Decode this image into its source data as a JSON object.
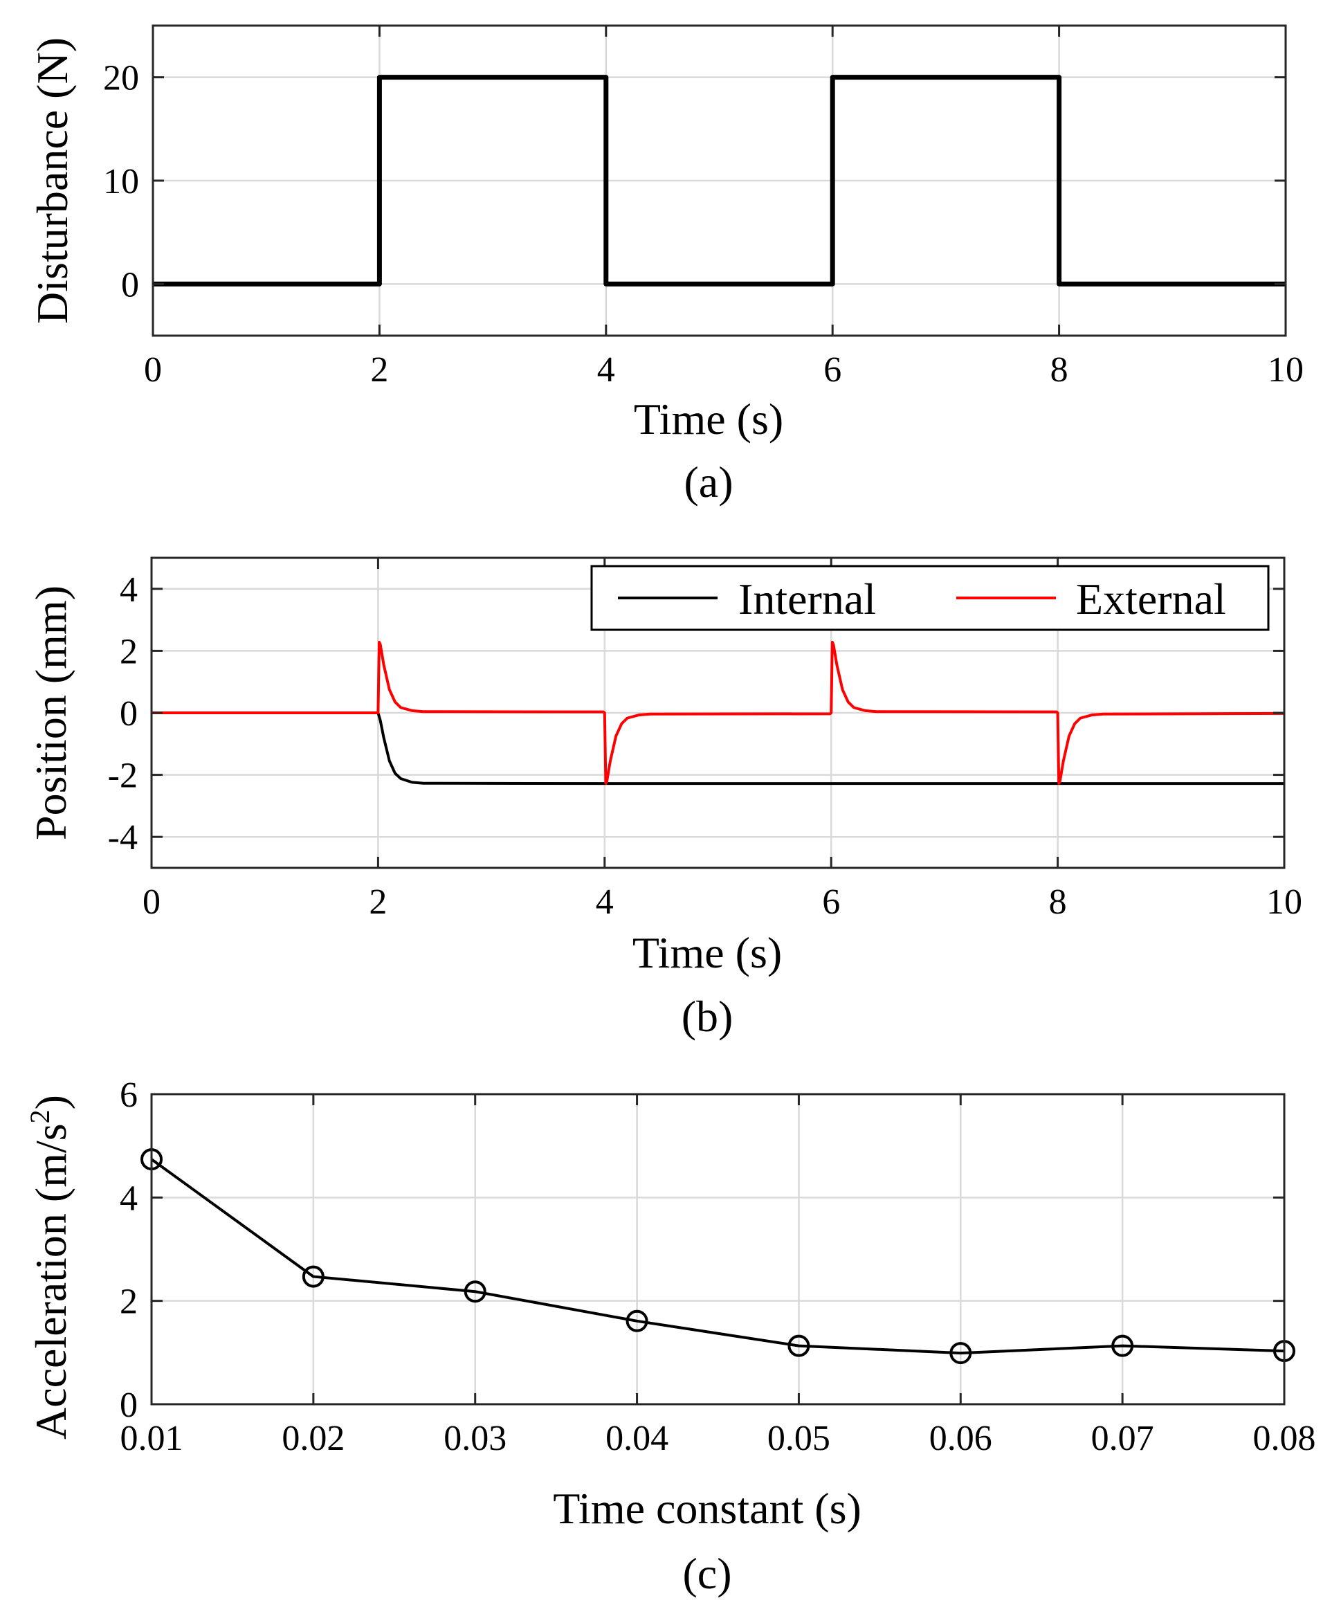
{
  "chart_data": [
    {
      "type": "line",
      "id": "a",
      "caption": "(a)",
      "xlabel": "Time (s)",
      "ylabel": "Disturbance (N)",
      "xlim": [
        0,
        10
      ],
      "ylim": [
        -5,
        25
      ],
      "xticks": [
        0,
        2,
        4,
        6,
        8,
        10
      ],
      "xtick_labels": [
        "0",
        "2",
        "4",
        "6",
        "8",
        "10"
      ],
      "yticks": [
        0,
        10,
        20
      ],
      "ytick_labels": [
        "0",
        "10",
        "20"
      ],
      "grid": true,
      "series": [
        {
          "name": "Disturbance",
          "color": "#000000",
          "x": [
            0,
            2,
            2,
            4,
            4,
            6,
            6,
            8,
            8,
            10
          ],
          "y": [
            0,
            0,
            20,
            20,
            0,
            0,
            20,
            20,
            0,
            0
          ]
        }
      ]
    },
    {
      "type": "line",
      "id": "b",
      "caption": "(b)",
      "xlabel": "Time (s)",
      "ylabel": "Position (mm)",
      "xlim": [
        0,
        10
      ],
      "ylim": [
        -5,
        5
      ],
      "xticks": [
        0,
        2,
        4,
        6,
        8,
        10
      ],
      "xtick_labels": [
        "0",
        "2",
        "4",
        "6",
        "8",
        "10"
      ],
      "yticks": [
        -4,
        -2,
        0,
        2,
        4
      ],
      "ytick_labels": [
        "-4",
        "-2",
        "0",
        "2",
        "4"
      ],
      "grid": true,
      "legend_position": "top-right",
      "series": [
        {
          "name": "Internal",
          "color": "#000000",
          "x": [
            0,
            2.0,
            2.02,
            2.05,
            2.1,
            2.15,
            2.2,
            2.3,
            2.4,
            3.99,
            4.0,
            6.0,
            6.02,
            6.05,
            6.1,
            6.15,
            6.2,
            6.3,
            6.4,
            7.99,
            8.0,
            10
          ],
          "y": [
            0,
            0,
            -0.25,
            -0.8,
            -1.55,
            -1.95,
            -2.12,
            -2.24,
            -2.27,
            -2.28,
            -2.28,
            -2.28,
            -2.28,
            -2.28,
            -2.28,
            -2.28,
            -2.28,
            -2.28,
            -2.28,
            -2.28,
            -2.28,
            -2.28
          ]
        },
        {
          "name": "External",
          "color": "#ff0000",
          "x": [
            0,
            2.0,
            2.01,
            2.02,
            2.05,
            2.1,
            2.15,
            2.2,
            2.3,
            2.4,
            3.99,
            4.0,
            4.01,
            4.02,
            4.05,
            4.1,
            4.15,
            4.2,
            4.3,
            4.4,
            5.99,
            6.0,
            6.01,
            6.02,
            6.05,
            6.1,
            6.15,
            6.2,
            6.3,
            6.4,
            7.99,
            8.0,
            8.01,
            8.02,
            8.05,
            8.1,
            8.15,
            8.2,
            8.3,
            8.4,
            10
          ],
          "y": [
            0,
            0,
            2.28,
            2.2,
            1.55,
            0.75,
            0.35,
            0.17,
            0.07,
            0.04,
            0.03,
            0,
            -2.28,
            -2.2,
            -1.55,
            -0.75,
            -0.35,
            -0.17,
            -0.07,
            -0.04,
            -0.03,
            0,
            2.28,
            2.2,
            1.55,
            0.75,
            0.35,
            0.17,
            0.07,
            0.04,
            0.03,
            0,
            -2.28,
            -2.2,
            -1.55,
            -0.75,
            -0.35,
            -0.17,
            -0.07,
            -0.04,
            -0.02
          ]
        }
      ]
    },
    {
      "type": "line",
      "id": "c",
      "caption": "(c)",
      "xlabel": "Time constant (s)",
      "ylabel_base": "Acceleration (m/s",
      "ylabel_sup": "2",
      "ylabel_close": ")",
      "xlim": [
        0.01,
        0.08
      ],
      "ylim": [
        0,
        6
      ],
      "xticks": [
        0.01,
        0.02,
        0.03,
        0.04,
        0.05,
        0.06,
        0.07,
        0.08
      ],
      "xtick_labels": [
        "0.01",
        "0.02",
        "0.03",
        "0.04",
        "0.05",
        "0.06",
        "0.07",
        "0.08"
      ],
      "yticks": [
        0,
        2,
        4,
        6
      ],
      "ytick_labels": [
        "0",
        "2",
        "4",
        "6"
      ],
      "grid": true,
      "series": [
        {
          "name": "Acceleration",
          "color": "#000000",
          "marker": "circle",
          "x": [
            0.01,
            0.02,
            0.03,
            0.04,
            0.05,
            0.06,
            0.07,
            0.08
          ],
          "y": [
            4.74,
            2.47,
            2.18,
            1.61,
            1.13,
            0.99,
            1.13,
            1.03
          ]
        }
      ]
    }
  ]
}
